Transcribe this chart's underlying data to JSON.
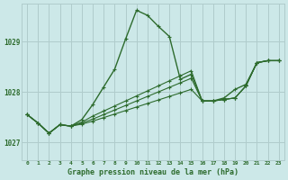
{
  "title": "Graphe pression niveau de la mer (hPa)",
  "bg_color": "#cce8e8",
  "grid_color": "#b0cccc",
  "line_color": "#2d6b2d",
  "xlim": [
    -0.5,
    23.5
  ],
  "ylim": [
    1026.65,
    1029.75
  ],
  "yticks": [
    1027,
    1028,
    1029
  ],
  "xtick_labels": [
    "0",
    "1",
    "2",
    "3",
    "4",
    "5",
    "6",
    "7",
    "8",
    "9",
    "10",
    "11",
    "12",
    "13",
    "14",
    "15",
    "16",
    "17",
    "18",
    "19",
    "20",
    "21",
    "22",
    "23"
  ],
  "series": [
    [
      1027.55,
      1027.38,
      1027.18,
      1027.35,
      1027.32,
      1027.45,
      1027.75,
      1028.1,
      1028.45,
      1029.05,
      1029.62,
      1029.52,
      1029.3,
      1029.1,
      1028.25,
      1028.35,
      1027.82,
      1027.82,
      1027.88,
      1028.05,
      1028.15,
      1028.58,
      1028.62,
      1028.62
    ],
    [
      1027.55,
      1027.38,
      1027.18,
      1027.35,
      1027.32,
      1027.4,
      1027.52,
      1027.62,
      1027.72,
      1027.82,
      1027.92,
      1028.02,
      1028.12,
      1028.22,
      1028.32,
      1028.42,
      1027.82,
      1027.82,
      1027.85,
      1027.88,
      1028.12,
      1028.58,
      1028.62,
      1028.62
    ],
    [
      1027.55,
      1027.38,
      1027.18,
      1027.35,
      1027.32,
      1027.38,
      1027.46,
      1027.55,
      1027.64,
      1027.73,
      1027.82,
      1027.91,
      1028.0,
      1028.09,
      1028.18,
      1028.27,
      1027.82,
      1027.82,
      1027.85,
      1027.88,
      1028.12,
      1028.58,
      1028.62,
      1028.62
    ],
    [
      1027.55,
      1027.38,
      1027.18,
      1027.35,
      1027.32,
      1027.36,
      1027.42,
      1027.49,
      1027.56,
      1027.63,
      1027.7,
      1027.77,
      1027.84,
      1027.91,
      1027.98,
      1028.05,
      1027.82,
      1027.82,
      1027.85,
      1027.88,
      1028.12,
      1028.58,
      1028.62,
      1028.62
    ]
  ]
}
